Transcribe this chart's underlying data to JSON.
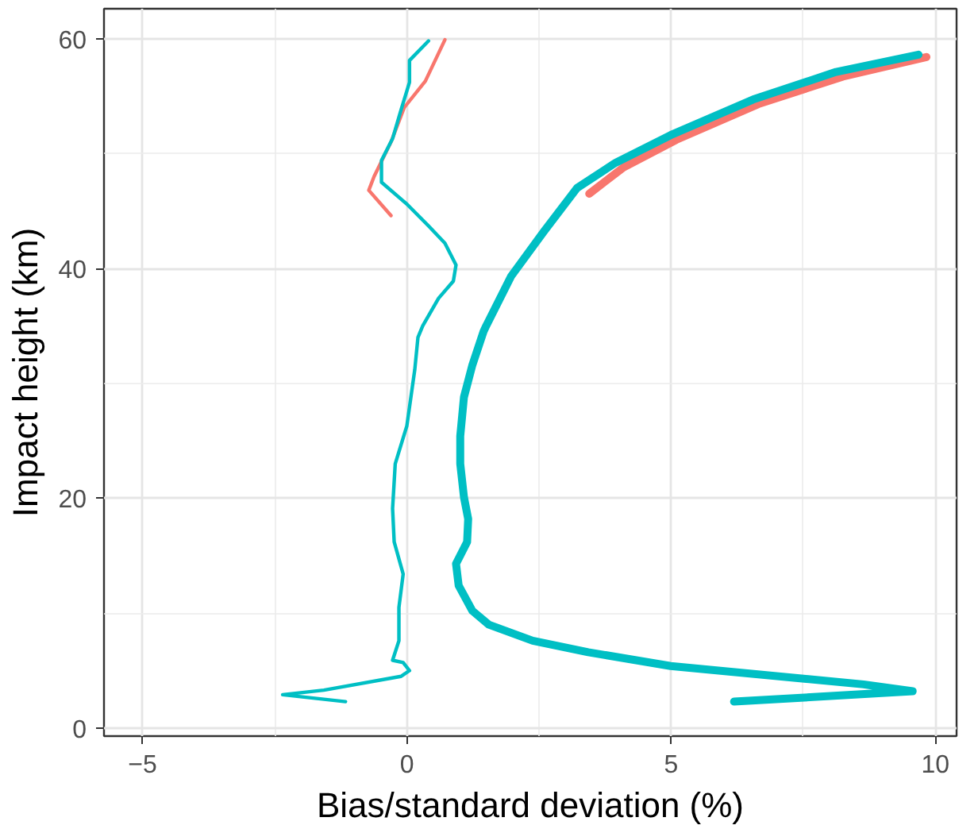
{
  "chart_data": {
    "type": "line",
    "xlabel": "Bias/standard deviation (%)",
    "ylabel": "Impact height (km)",
    "xlim": [
      -5.73,
      10.4
    ],
    "xticks": [
      -5,
      0,
      5,
      10
    ],
    "ylim": [
      -0.7,
      62.6
    ],
    "yticks": [
      0,
      20,
      40,
      60
    ],
    "grid": true,
    "line_style": "solid",
    "marker": "none",
    "series": [
      {
        "color": "#f8766d",
        "x": [
          -0.3,
          -0.72,
          -0.62,
          -0.3,
          -0.05,
          0.35,
          0.72
        ],
        "values": [
          44.6,
          46.8,
          48.0,
          51.0,
          54.0,
          56.3,
          59.9
        ]
      },
      {
        "color": "#f8766d",
        "x": [
          3.45,
          4.1,
          5.1,
          6.65,
          8.25,
          9.83
        ],
        "values": [
          46.5,
          48.8,
          51.2,
          54.3,
          56.7,
          58.4
        ]
      },
      {
        "color": "#00bfc4",
        "x": [
          -1.16,
          -2.35,
          -1.57,
          -0.11,
          0.05,
          -0.07,
          -0.27,
          -0.15,
          -0.15,
          -0.07,
          -0.24,
          -0.27,
          -0.22,
          0.0,
          0.15,
          0.21,
          0.3,
          0.6,
          0.88,
          0.93,
          0.72,
          0.41,
          0.0,
          -0.48,
          -0.48,
          -0.27,
          -0.11,
          0.05,
          0.05,
          0.41
        ],
        "values": [
          2.3,
          2.9,
          3.3,
          4.5,
          5.0,
          5.7,
          5.9,
          7.6,
          10.5,
          13.4,
          16.2,
          19.1,
          23.0,
          26.3,
          31.2,
          34.0,
          35.0,
          37.4,
          38.9,
          40.3,
          42.2,
          43.7,
          45.6,
          47.5,
          49.4,
          51.3,
          53.8,
          56.2,
          58.1,
          59.8
        ]
      },
      {
        "color": "#00bfc4",
        "x": [
          6.19,
          9.57,
          8.64,
          4.99,
          3.43,
          2.38,
          1.55,
          1.24,
          0.98,
          0.93,
          1.14,
          1.16,
          1.08,
          1.01,
          1.01,
          1.08,
          1.24,
          1.45,
          1.5,
          1.97,
          2.59,
          3.22,
          3.95,
          4.99,
          6.55,
          8.12,
          9.68
        ],
        "values": [
          2.3,
          3.2,
          3.8,
          5.4,
          6.6,
          7.6,
          9.0,
          10.2,
          12.4,
          14.3,
          16.2,
          18.2,
          20.1,
          23.0,
          25.4,
          28.8,
          31.6,
          34.5,
          35.0,
          39.3,
          43.2,
          47.0,
          49.2,
          51.6,
          54.7,
          57.1,
          58.6
        ]
      }
    ]
  }
}
